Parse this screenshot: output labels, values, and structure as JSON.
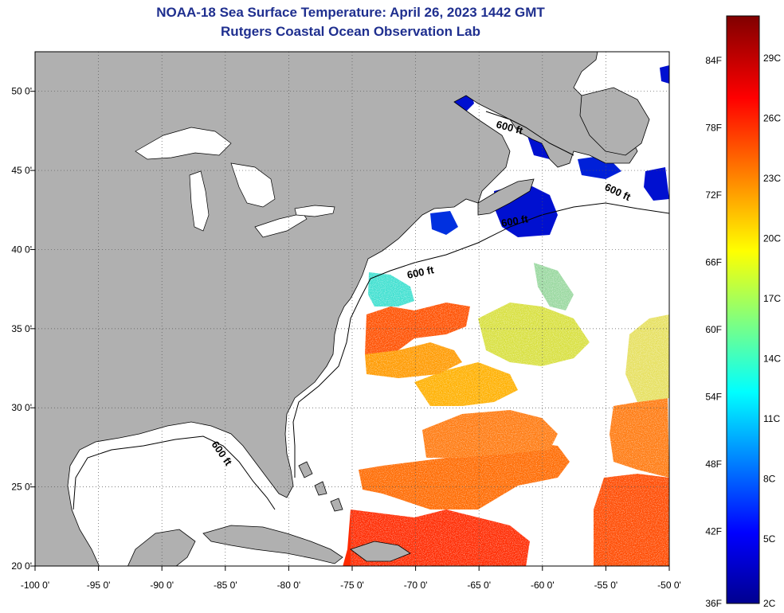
{
  "title": {
    "line1": "NOAA-18 Sea Surface Temperature:  April 26, 2023 1442 GMT",
    "line2": "Rutgers Coastal Ocean Observation Lab"
  },
  "axes": {
    "lon_ticks": [
      "-100 0'",
      "-95 0'",
      "-90 0'",
      "-85 0'",
      "-80 0'",
      "-75 0'",
      "-70 0'",
      "-65 0'",
      "-60 0'",
      "-55 0'",
      "-50 0'"
    ],
    "lat_ticks": [
      "50 0'",
      "45 0'",
      "40 0'",
      "35 0'",
      "30 0'",
      "25 0'",
      "20 0'"
    ],
    "lon_range": [
      -100,
      -50
    ],
    "lat_range": [
      20,
      52.5
    ]
  },
  "contour_label": "600 ft",
  "colorbar": {
    "fahrenheit": [
      "84F",
      "78F",
      "72F",
      "66F",
      "60F",
      "54F",
      "48F",
      "42F",
      "36F"
    ],
    "celsius": [
      "29C",
      "26C",
      "23C",
      "20C",
      "17C",
      "14C",
      "11C",
      "8C",
      "5C",
      "2C"
    ]
  },
  "colors": {
    "land": "#b0b0b0",
    "ocean_no_data": "#ffffff",
    "title": "#1f2f8f"
  }
}
